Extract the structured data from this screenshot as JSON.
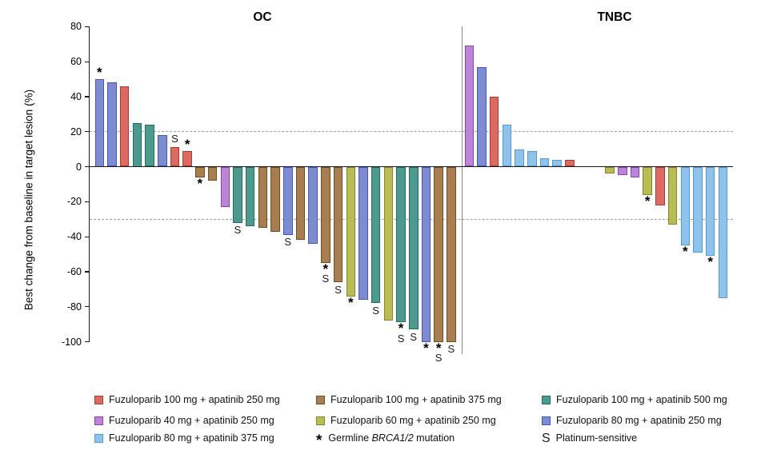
{
  "figure": {
    "y_axis_label": "Best change from baseline in target lesion (%)",
    "panel_titles": {
      "left": "OC",
      "right": "TNBC"
    }
  },
  "colors": {
    "f100a250": {
      "fill": "#DC6A60",
      "border": "#AE3B32"
    },
    "f40a250": {
      "fill": "#BB84D8",
      "border": "#8D44B0"
    },
    "f80a375": {
      "fill": "#8FC3EC",
      "border": "#4E9BD8"
    },
    "f100a375": {
      "fill": "#A87E50",
      "border": "#6F4E26"
    },
    "f60a250": {
      "fill": "#B9BC52",
      "border": "#84862C"
    },
    "f100a500": {
      "fill": "#4C9A8D",
      "border": "#1F6F63"
    },
    "f80a250": {
      "fill": "#7C8CCE",
      "border": "#4853C4"
    }
  },
  "chart_data": {
    "type": "bar",
    "ylabel": "Best change from baseline in target lesion (%)",
    "ylim": [
      -100,
      80
    ],
    "yticks": [
      80,
      60,
      40,
      20,
      0,
      -20,
      -40,
      -60,
      -80,
      -100
    ],
    "reference_lines": {
      "upper": 20,
      "lower": -30
    },
    "mark_meanings": {
      "*": "Germline BRCA1/2 mutation",
      "S": "Platinum-sensitive"
    },
    "panels": [
      {
        "title": "OC",
        "bars": [
          {
            "value": 50,
            "group": "f80a250",
            "mark": "*",
            "mark_pos": "above"
          },
          {
            "value": 48,
            "group": "f80a250"
          },
          {
            "value": 46,
            "group": "f100a250"
          },
          {
            "value": 25,
            "group": "f100a500"
          },
          {
            "value": 24,
            "group": "f100a500"
          },
          {
            "value": 18,
            "group": "f80a250"
          },
          {
            "value": 11,
            "group": "f100a250",
            "mark": "S",
            "mark_pos": "above"
          },
          {
            "value": 9,
            "group": "f100a250",
            "mark": "*",
            "mark_pos": "above"
          },
          {
            "value": -6,
            "group": "f100a375",
            "mark": "*",
            "mark_pos": "below"
          },
          {
            "value": -8,
            "group": "f100a375"
          },
          {
            "value": -23,
            "group": "f40a250"
          },
          {
            "value": -32,
            "group": "f100a500",
            "mark": "S",
            "mark_pos": "below"
          },
          {
            "value": -34,
            "group": "f100a500"
          },
          {
            "value": -35,
            "group": "f100a375"
          },
          {
            "value": -37,
            "group": "f100a375"
          },
          {
            "value": -39,
            "group": "f80a250",
            "mark": "S",
            "mark_pos": "below"
          },
          {
            "value": -42,
            "group": "f100a375"
          },
          {
            "value": -44,
            "group": "f80a250"
          },
          {
            "value": -55,
            "group": "f100a375",
            "mark": "*S",
            "mark_pos": "below"
          },
          {
            "value": -66,
            "group": "f100a375",
            "mark": "S",
            "mark_pos": "below"
          },
          {
            "value": -74,
            "group": "f60a250",
            "mark": "*",
            "mark_pos": "below"
          },
          {
            "value": -76,
            "group": "f80a250"
          },
          {
            "value": -78,
            "group": "f100a500",
            "mark": "S",
            "mark_pos": "below"
          },
          {
            "value": -88,
            "group": "f60a250"
          },
          {
            "value": -89,
            "group": "f100a500",
            "mark": "*S",
            "mark_pos": "below"
          },
          {
            "value": -93,
            "group": "f100a500",
            "mark": "S",
            "mark_pos": "below"
          },
          {
            "value": -100,
            "group": "f80a250",
            "mark": "*",
            "mark_pos": "below"
          },
          {
            "value": -100,
            "group": "f100a375",
            "mark": "*S",
            "mark_pos": "below"
          },
          {
            "value": -100,
            "group": "f100a375",
            "mark": "S",
            "mark_pos": "below"
          }
        ]
      },
      {
        "title": "TNBC",
        "bars": [
          {
            "value": 69,
            "group": "f40a250"
          },
          {
            "value": 57,
            "group": "f80a250"
          },
          {
            "value": 40,
            "group": "f100a250"
          },
          {
            "value": 24,
            "group": "f80a375"
          },
          {
            "value": 10,
            "group": "f80a375"
          },
          {
            "value": 9,
            "group": "f80a375"
          },
          {
            "value": 5,
            "group": "f80a375"
          },
          {
            "value": 4,
            "group": "f80a375"
          },
          {
            "value": 4,
            "group": "f100a250"
          },
          {
            "value": -4,
            "group": "f60a250",
            "gap_before": true
          },
          {
            "value": -5,
            "group": "f40a250"
          },
          {
            "value": -6,
            "group": "f40a250"
          },
          {
            "value": -16,
            "group": "f60a250",
            "mark": "*",
            "mark_pos": "below"
          },
          {
            "value": -22,
            "group": "f100a250"
          },
          {
            "value": -33,
            "group": "f60a250"
          },
          {
            "value": -45,
            "group": "f80a375",
            "mark": "*",
            "mark_pos": "below"
          },
          {
            "value": -49,
            "group": "f80a375"
          },
          {
            "value": -51,
            "group": "f80a375",
            "mark": "*",
            "mark_pos": "below"
          },
          {
            "value": -75,
            "group": "f80a375"
          }
        ]
      }
    ]
  },
  "legend": {
    "columns": [
      {
        "items": [
          {
            "type": "swatch",
            "group": "f100a250",
            "label": "Fuzuloparib 100 mg + apatinib 250 mg"
          },
          {
            "type": "swatch",
            "group": "f40a250",
            "label": "Fuzuloparib 40 mg + apatinib 250 mg"
          },
          {
            "type": "swatch",
            "group": "f80a375",
            "label": "Fuzuloparib 80 mg + apatinib 375 mg"
          }
        ]
      },
      {
        "items": [
          {
            "type": "swatch",
            "group": "f100a375",
            "label": "Fuzuloparib 100 mg + apatinib 375 mg"
          },
          {
            "type": "swatch",
            "group": "f60a250",
            "label": "Fuzuloparib 60 mg + apatinib 250 mg"
          },
          {
            "type": "mark",
            "symbol": "*",
            "label_prefix": "Germline ",
            "label_italic": "BRCA1/2",
            "label_suffix": " mutation"
          }
        ]
      },
      {
        "items": [
          {
            "type": "swatch",
            "group": "f100a500",
            "label": "Fuzuloparib 100 mg + apatinib 500 mg"
          },
          {
            "type": "swatch",
            "group": "f80a250",
            "label": "Fuzuloparib 80 mg + apatinib 250 mg"
          },
          {
            "type": "mark",
            "symbol": "S",
            "label_prefix": "Platinum-sensitive",
            "label_italic": "",
            "label_suffix": ""
          }
        ]
      }
    ]
  }
}
